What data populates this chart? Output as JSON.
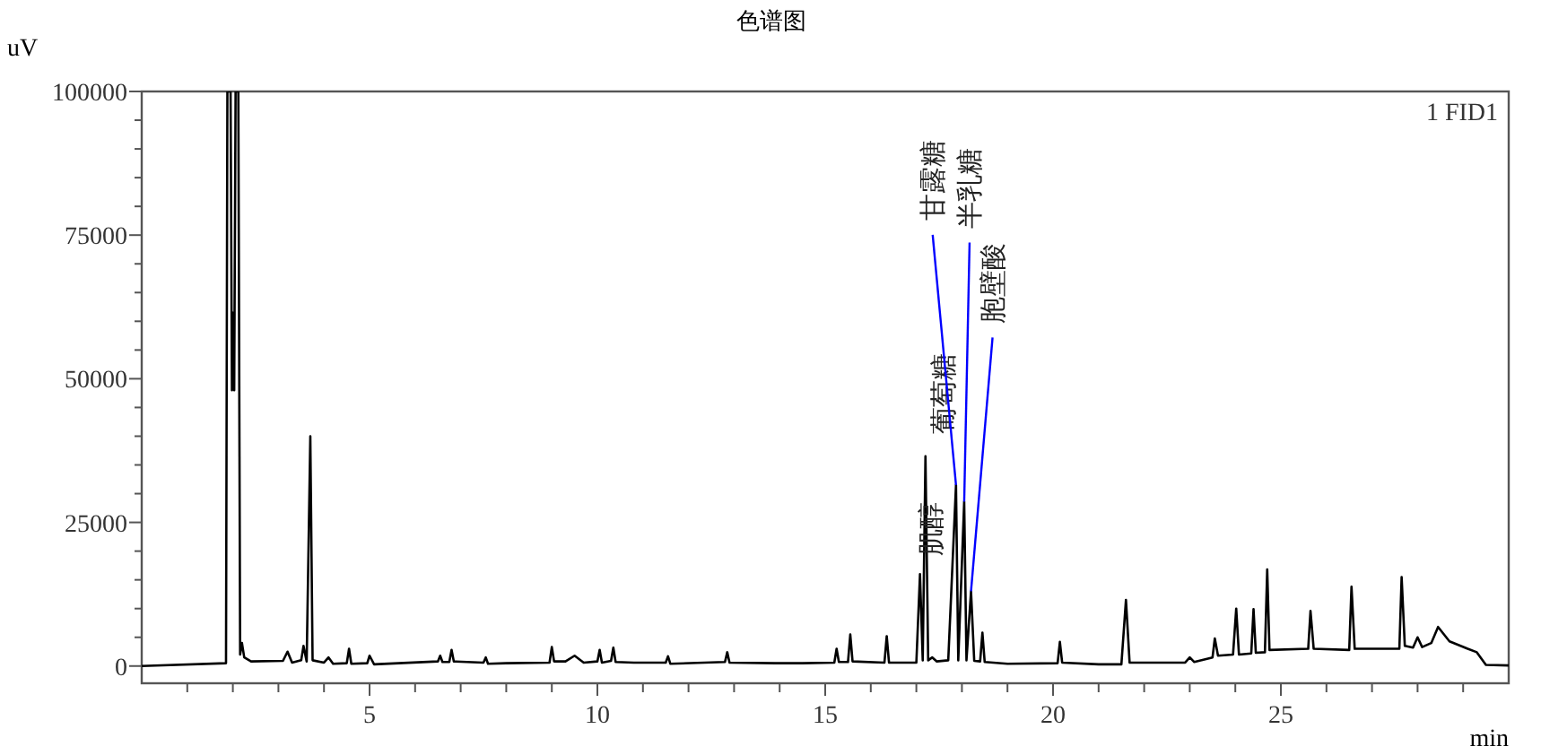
{
  "chart_data": {
    "type": "line",
    "title": "色谱图",
    "xlabel": "min",
    "ylabel": "uV",
    "annotations": [
      {
        "text": "肌醇",
        "x": 17.08,
        "y": 16000
      },
      {
        "text": "葡萄糖",
        "x": 17.2,
        "y": 36500
      },
      {
        "text": "甘露糖",
        "x": 17.87,
        "y": 31500
      },
      {
        "text": "半乳糖",
        "x": 18.05,
        "y": 28600
      },
      {
        "text": "胞壁酸",
        "x": 18.2,
        "y": 13000
      },
      "1 FID1"
    ],
    "xlim": [
      0,
      30
    ],
    "ylim": [
      -3000,
      100000
    ],
    "xticks": [
      {
        "value": 1,
        "label": null
      },
      {
        "value": 2,
        "label": null
      },
      {
        "value": 3,
        "label": null
      },
      {
        "value": 4,
        "label": null
      },
      5,
      {
        "value": 6,
        "label": null
      },
      {
        "value": 7,
        "label": null
      },
      {
        "value": 8,
        "label": null
      },
      {
        "value": 9,
        "label": null
      },
      10,
      {
        "value": 11,
        "label": null
      },
      {
        "value": 12,
        "label": null
      },
      {
        "value": 13,
        "label": null
      },
      {
        "value": 14,
        "label": null
      },
      15,
      {
        "value": 16,
        "label": null
      },
      {
        "value": 17,
        "label": null
      },
      {
        "value": 18,
        "label": null
      },
      {
        "value": 19,
        "label": null
      },
      20,
      {
        "value": 21,
        "label": null
      },
      {
        "value": 22,
        "label": null
      },
      {
        "value": 23,
        "label": null
      },
      {
        "value": 24,
        "label": null
      },
      25,
      {
        "value": 26,
        "label": null
      },
      {
        "value": 27,
        "label": null
      },
      {
        "value": 28,
        "label": null
      },
      {
        "value": 29,
        "label": null
      }
    ],
    "yticks": [
      0,
      {
        "value": 5000,
        "label": null
      },
      {
        "value": 10000,
        "label": null
      },
      {
        "value": 15000,
        "label": null
      },
      {
        "value": 20000,
        "label": null
      },
      25000,
      {
        "value": 30000,
        "label": null
      },
      {
        "value": 35000,
        "label": null
      },
      {
        "value": 40000,
        "label": null
      },
      {
        "value": 45000,
        "label": null
      },
      50000,
      {
        "value": 55000,
        "label": null
      },
      {
        "value": 60000,
        "label": null
      },
      {
        "value": 65000,
        "label": null
      },
      {
        "value": 70000,
        "label": null
      },
      75000,
      {
        "value": 80000,
        "label": null
      },
      {
        "value": 85000,
        "label": null
      },
      {
        "value": 90000,
        "label": null
      },
      {
        "value": 95000,
        "label": null
      },
      100000
    ],
    "x": [
      0,
      1.85,
      1.88,
      1.95,
      1.98,
      2.0,
      2.03,
      2.06,
      2.12,
      2.16,
      2.2,
      2.25,
      2.4,
      3.1,
      3.2,
      3.3,
      3.5,
      3.55,
      3.62,
      3.7,
      3.75,
      4.0,
      4.1,
      4.2,
      4.5,
      4.55,
      4.6,
      4.95,
      5.0,
      5.1,
      6.5,
      6.55,
      6.6,
      6.75,
      6.8,
      6.85,
      7.5,
      7.55,
      7.6,
      8.0,
      8.95,
      9.0,
      9.05,
      9.3,
      9.5,
      9.7,
      10.0,
      10.05,
      10.1,
      10.3,
      10.35,
      10.4,
      10.8,
      11.5,
      11.55,
      11.6,
      12.8,
      12.85,
      12.9,
      13.9,
      14.5,
      15.2,
      15.25,
      15.3,
      15.5,
      15.55,
      15.6,
      16.3,
      16.35,
      16.4,
      17.0,
      17.08,
      17.14,
      17.2,
      17.26,
      17.35,
      17.45,
      17.7,
      17.87,
      17.92,
      18.05,
      18.1,
      18.2,
      18.27,
      18.4,
      18.45,
      18.5,
      19.0,
      20.1,
      20.15,
      20.2,
      21.0,
      21.5,
      21.6,
      21.68,
      22.9,
      23.0,
      23.1,
      23.5,
      23.55,
      23.62,
      23.95,
      24.02,
      24.08,
      24.35,
      24.4,
      24.45,
      24.65,
      24.7,
      24.75,
      25.6,
      25.65,
      25.72,
      26.5,
      26.55,
      26.62,
      27.6,
      27.65,
      27.72,
      27.9,
      28.0,
      28.1,
      28.3,
      28.45,
      28.7,
      29.1,
      29.3,
      29.5,
      30
    ],
    "series": [
      {
        "color": "#000000",
        "values": [
          0,
          500,
          100000,
          100000,
          48000,
          61500,
          48000,
          100000,
          100000,
          2000,
          4000,
          1500,
          800,
          900,
          2500,
          600,
          1000,
          3500,
          800,
          40000,
          1000,
          600,
          1500,
          400,
          500,
          3000,
          400,
          500,
          1800,
          300,
          800,
          1800,
          700,
          700,
          2800,
          800,
          600,
          1500,
          400,
          500,
          600,
          3300,
          800,
          800,
          1800,
          600,
          800,
          2800,
          600,
          900,
          3200,
          700,
          600,
          600,
          1700,
          400,
          700,
          2400,
          600,
          500,
          500,
          600,
          3000,
          700,
          700,
          5500,
          800,
          600,
          5200,
          600,
          600,
          16000,
          1000,
          36500,
          1000,
          1500,
          800,
          1000,
          31500,
          1000,
          28600,
          1000,
          13000,
          900,
          800,
          5800,
          700,
          400,
          500,
          4200,
          600,
          300,
          300,
          11500,
          600,
          600,
          1500,
          700,
          1500,
          4800,
          1800,
          2000,
          10000,
          2000,
          2200,
          9900,
          2300,
          2400,
          16800,
          2800,
          3000,
          9600,
          3000,
          2800,
          13800,
          3000,
          3000,
          15500,
          3500,
          3200,
          5000,
          3300,
          4000,
          6800,
          4300,
          3000,
          2400,
          200,
          100
        ]
      }
    ]
  }
}
